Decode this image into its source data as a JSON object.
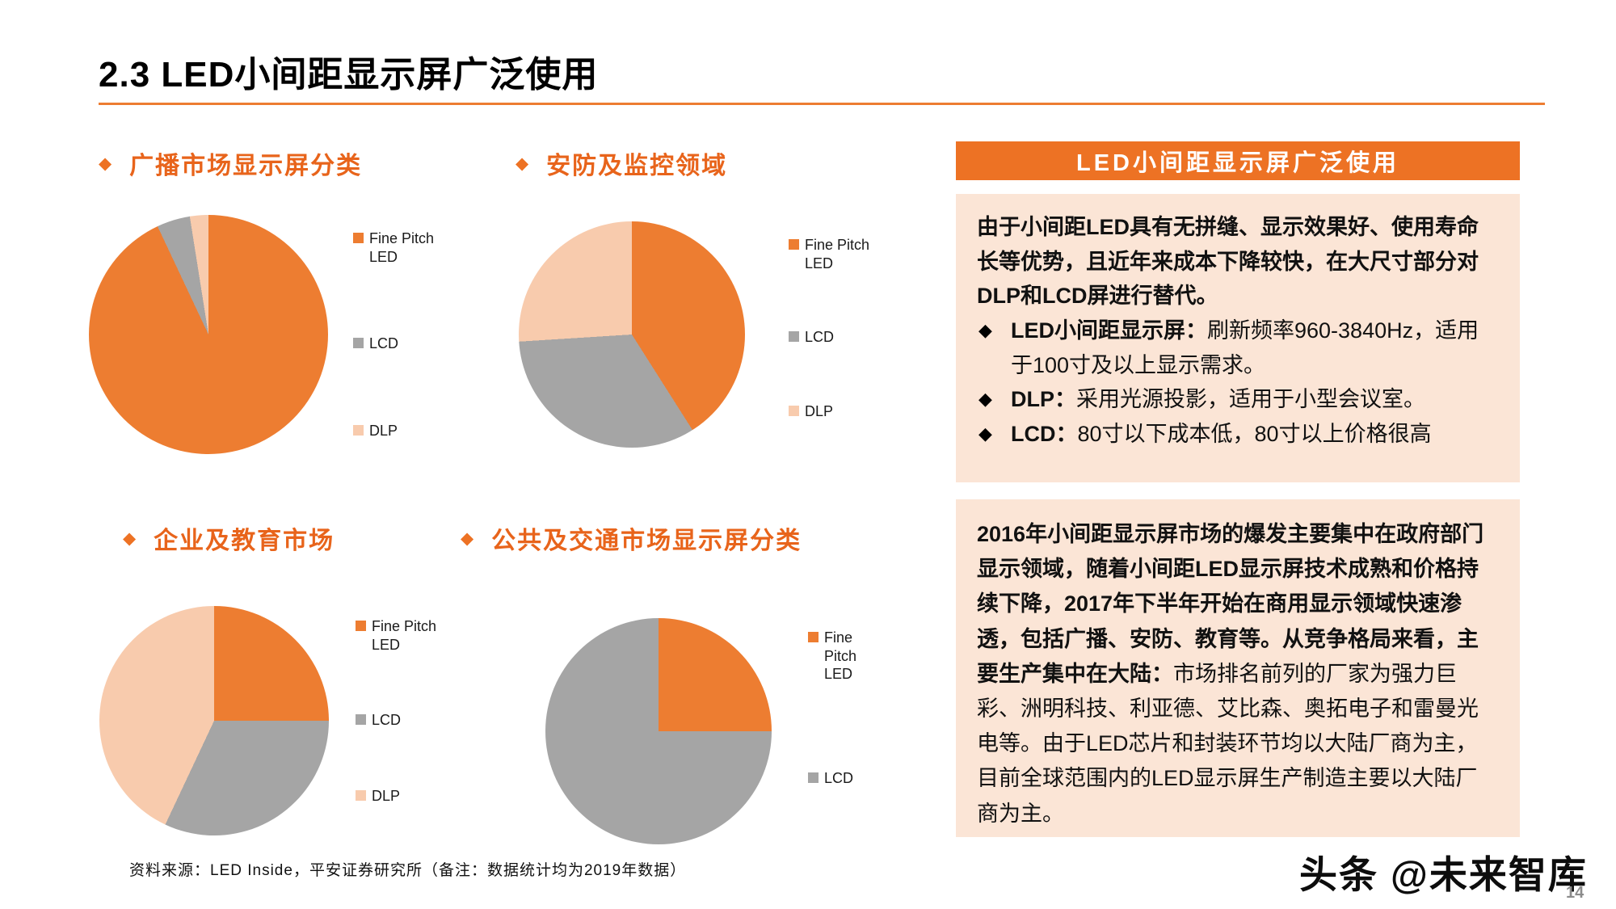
{
  "slide": {
    "title": "2.3 LED小间距显示屏广泛使用",
    "page_number": "14",
    "watermark": "头条 @未来智库",
    "source_note": "资料来源：LED Inside，平安证券研究所（备注：数据统计均为2019年数据）"
  },
  "icons": {
    "diamond": "◆"
  },
  "colors": {
    "accent_orange": "#ED7224",
    "series_fine_pitch_led": "#ED7D31",
    "series_lcd": "#A5A5A5",
    "series_dlp": "#F8CBAD",
    "info_box_bg": "#FBE5D6"
  },
  "chart_data": [
    {
      "type": "pie",
      "title": "广播市场显示屏分类",
      "labels": [
        "Fine Pitch LED",
        "LCD",
        "DLP"
      ],
      "values": [
        93,
        4.5,
        2.5
      ],
      "colors": [
        "#ED7D31",
        "#A5A5A5",
        "#F8CBAD"
      ],
      "legend_position": "right"
    },
    {
      "type": "pie",
      "title": "安防及监控领域",
      "labels": [
        "Fine Pitch LED",
        "LCD",
        "DLP"
      ],
      "values": [
        41,
        33,
        26
      ],
      "colors": [
        "#ED7D31",
        "#A5A5A5",
        "#F8CBAD"
      ],
      "legend_position": "right"
    },
    {
      "type": "pie",
      "title": "企业及教育市场",
      "labels": [
        "Fine Pitch LED",
        "LCD",
        "DLP"
      ],
      "values": [
        25,
        32,
        43
      ],
      "colors": [
        "#ED7D31",
        "#A5A5A5",
        "#F8CBAD"
      ],
      "legend_position": "right"
    },
    {
      "type": "pie",
      "title": "公共及交通市场显示屏分类",
      "labels": [
        "Fine Pitch LED",
        "LCD"
      ],
      "values": [
        25,
        75
      ],
      "colors": [
        "#ED7D31",
        "#A5A5A5"
      ],
      "legend_position": "right"
    }
  ],
  "panel": {
    "header": "LED小间距显示屏广泛使用",
    "box1": {
      "intro": "由于小间距LED具有无拼缝、显示效果好、使用寿命长等优势，且近年来成本下降较快，在大尺寸部分对DLP和LCD屏进行替代。",
      "bullets": [
        {
          "label": "LED小间距显示屏：",
          "text": "刷新频率960-3840Hz，适用于100寸及以上显示需求。"
        },
        {
          "label": "DLP：",
          "text": "采用光源投影，适用于小型会议室。"
        },
        {
          "label": "LCD：",
          "text": "80寸以下成本低，80寸以上价格很高"
        }
      ]
    },
    "box2": {
      "lead": "2016年小间距显示屏市场的爆发主要集中在政府部门显示领域，随着小间距LED显示屏技术成熟和价格持续下降，2017年下半年开始在商用显示领域快速渗透，包括广播、安防、教育等。从竞争格局来看，主要生产集中在大陆：",
      "rest": "市场排名前列的厂家为强力巨彩、洲明科技、利亚德、艾比森、奥拓电子和雷曼光电等。由于LED芯片和封装环节均以大陆厂商为主，目前全球范围内的LED显示屏生产制造主要以大陆厂商为主。"
    }
  }
}
